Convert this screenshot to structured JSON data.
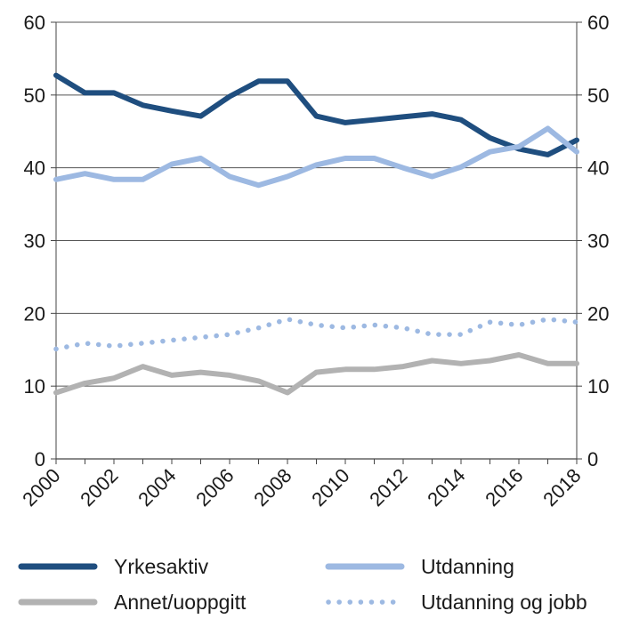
{
  "chart_data": {
    "type": "line",
    "title": "",
    "xlabel": "",
    "ylabel": "",
    "x": [
      2000,
      2001,
      2002,
      2003,
      2004,
      2005,
      2006,
      2007,
      2008,
      2009,
      2010,
      2011,
      2012,
      2013,
      2014,
      2015,
      2016,
      2017,
      2018
    ],
    "x_tick_labels": [
      "2000",
      "2002",
      "2004",
      "2006",
      "2008",
      "2010",
      "2012",
      "2014",
      "2016",
      "2018"
    ],
    "ylim": [
      0,
      60
    ],
    "y_ticks": [
      0,
      10,
      20,
      30,
      40,
      50,
      60
    ],
    "y_tick_labels": [
      "0",
      "10",
      "20",
      "30",
      "40",
      "50",
      "60"
    ],
    "grid": true,
    "secondary_y_axis": true,
    "series": [
      {
        "name": "Yrkesaktiv",
        "color": "#1f4e7f",
        "style": "solid",
        "values": [
          52.7,
          50.3,
          50.3,
          48.6,
          47.8,
          47.1,
          49.8,
          51.9,
          51.9,
          47.1,
          46.2,
          46.6,
          47.0,
          47.4,
          46.6,
          44.1,
          42.6,
          41.8,
          43.8
        ]
      },
      {
        "name": "Utdanning",
        "color": "#9db9e2",
        "style": "solid",
        "values": [
          38.4,
          39.2,
          38.4,
          38.4,
          40.5,
          41.3,
          38.8,
          37.6,
          38.8,
          40.4,
          41.3,
          41.3,
          40.0,
          38.8,
          40.1,
          42.2,
          42.9,
          45.4,
          42.2
        ]
      },
      {
        "name": "Annet/uoppgitt",
        "color": "#b2b2b2",
        "style": "solid",
        "values": [
          9.1,
          10.4,
          11.1,
          12.7,
          11.5,
          11.9,
          11.5,
          10.7,
          9.1,
          11.9,
          12.3,
          12.3,
          12.7,
          13.5,
          13.1,
          13.5,
          14.3,
          13.1,
          13.1
        ]
      },
      {
        "name": "Utdanning og jobb",
        "color": "#9db9e2",
        "style": "dotted",
        "values": [
          15.1,
          15.9,
          15.5,
          15.9,
          16.3,
          16.7,
          17.1,
          18.0,
          19.2,
          18.4,
          18.0,
          18.4,
          18.0,
          17.1,
          17.1,
          18.8,
          18.4,
          19.2,
          18.8
        ]
      }
    ],
    "legend": {
      "position": "bottom",
      "entries": [
        "Yrkesaktiv",
        "Utdanning",
        "Annet/uoppgitt",
        "Utdanning og jobb"
      ]
    }
  }
}
